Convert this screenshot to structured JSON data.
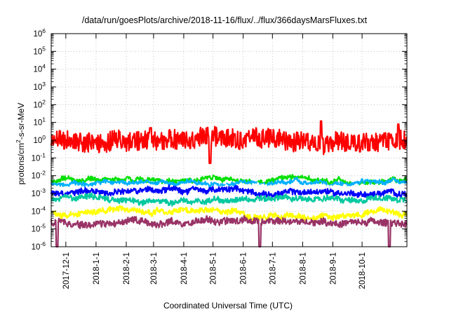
{
  "chart_data": {
    "type": "line",
    "title": "/data/run/goesPlots/archive/2018-11-16/flux/../flux/366daysMarsFluxes.txt",
    "xlabel": "Coordinated Universal Time (UTC)",
    "ylabel": "protons/cm2-s-sr-MeV",
    "ylabel_parts": {
      "base": "protons/cm",
      "sup": "2",
      "rest": "-s-sr-MeV"
    },
    "y_scale": "log",
    "ylim": [
      1e-06,
      1000000.0
    ],
    "y_ticks": [
      {
        "base": "10",
        "exp": "-6",
        "value": 1e-06
      },
      {
        "base": "10",
        "exp": "-5",
        "value": 1e-05
      },
      {
        "base": "10",
        "exp": "-4",
        "value": 0.0001
      },
      {
        "base": "10",
        "exp": "-3",
        "value": 0.001
      },
      {
        "base": "10",
        "exp": "-2",
        "value": 0.01
      },
      {
        "base": "10",
        "exp": "-1",
        "value": 0.1
      },
      {
        "base": "10",
        "exp": "0",
        "value": 1
      },
      {
        "base": "10",
        "exp": "1",
        "value": 10
      },
      {
        "base": "10",
        "exp": "2",
        "value": 100
      },
      {
        "base": "10",
        "exp": "3",
        "value": 1000
      },
      {
        "base": "10",
        "exp": "4",
        "value": 10000
      },
      {
        "base": "10",
        "exp": "5",
        "value": 100000
      },
      {
        "base": "10",
        "exp": "6",
        "value": 1000000
      }
    ],
    "xlim": [
      "2017-11-16",
      "2018-11-16"
    ],
    "x_ticks": [
      "2017-12-1",
      "2018-1-1",
      "2018-2-1",
      "2018-3-1",
      "2018-4-1",
      "2018-5-1",
      "2018-6-1",
      "2018-7-1",
      "2018-8-1",
      "2018-9-1",
      "2018-10-1"
    ],
    "x_tick_dates": [
      "2017-12-01",
      "2018-01-01",
      "2018-02-01",
      "2018-03-01",
      "2018-04-01",
      "2018-05-01",
      "2018-06-01",
      "2018-07-01",
      "2018-08-01",
      "2018-09-01",
      "2018-10-01"
    ],
    "grid": true,
    "legend": "none",
    "series": [
      {
        "color": "#ff0000",
        "level": 0.9,
        "spread_decades": 0.55,
        "spikes": [
          [
            "2018-02-26",
            5
          ],
          [
            "2018-08-20",
            12
          ],
          [
            "2018-11-07",
            8
          ],
          [
            "2018-04-28",
            0.05
          ]
        ]
      },
      {
        "color": "#00e000",
        "level": 0.0055,
        "spread_decades": 0.12,
        "spikes": []
      },
      {
        "color": "#00b0ff",
        "level": 0.0038,
        "spread_decades": 0.1,
        "spikes": []
      },
      {
        "color": "#ffffff",
        "level": 0.0018,
        "spread_decades": 0.12,
        "spikes": []
      },
      {
        "color": "#0000ff",
        "level": 0.0011,
        "spread_decades": 0.15,
        "spikes": []
      },
      {
        "color": "#00c8a0",
        "level": 0.0004,
        "spread_decades": 0.15,
        "spikes": []
      },
      {
        "color": "#ffff00",
        "level": 8.5e-05,
        "spread_decades": 0.15,
        "spikes": []
      },
      {
        "color": "#993366",
        "level": 2.2e-05,
        "spread_decades": 0.18,
        "spikes": [
          [
            "2017-11-22",
            1e-06
          ],
          [
            "2018-06-18",
            1e-06
          ],
          [
            "2018-10-29",
            1e-06
          ]
        ]
      }
    ]
  }
}
